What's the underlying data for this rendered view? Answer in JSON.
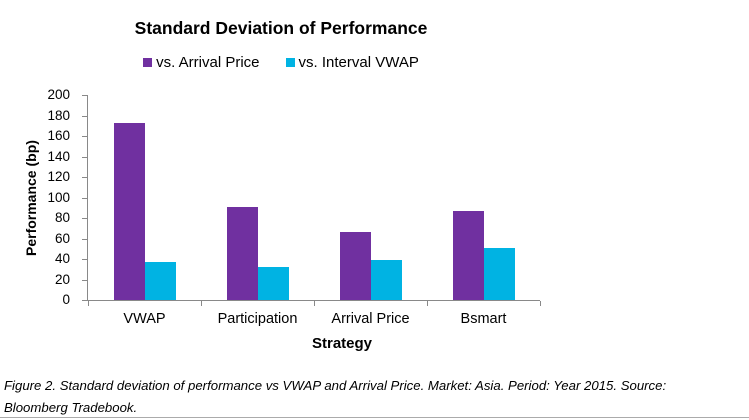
{
  "figure": {
    "caption_lines": [
      "Figure 2. Standard deviation of performance vs VWAP and Arrival Price. Market: Asia. Period: Year 2015. Source:",
      "Bloomberg Tradebook."
    ]
  },
  "chart_data": {
    "type": "bar",
    "title": "Standard Deviation of Performance",
    "categories": [
      "VWAP",
      "Participation",
      "Arrival Price",
      "Bsmart"
    ],
    "series": [
      {
        "name": "vs. Arrival Price",
        "color": "#7030A0",
        "values": [
          173,
          91,
          66,
          87
        ]
      },
      {
        "name": "vs. Interval VWAP",
        "color": "#00B3E3",
        "values": [
          37,
          32,
          39,
          51
        ]
      }
    ],
    "xlabel": "Strategy",
    "ylabel": "Performance (bp)",
    "ylim": [
      0,
      200
    ],
    "ytick_step": 20,
    "grid": false,
    "legend_position": "top",
    "axis_color": "#898989",
    "text_color": "#000000"
  }
}
